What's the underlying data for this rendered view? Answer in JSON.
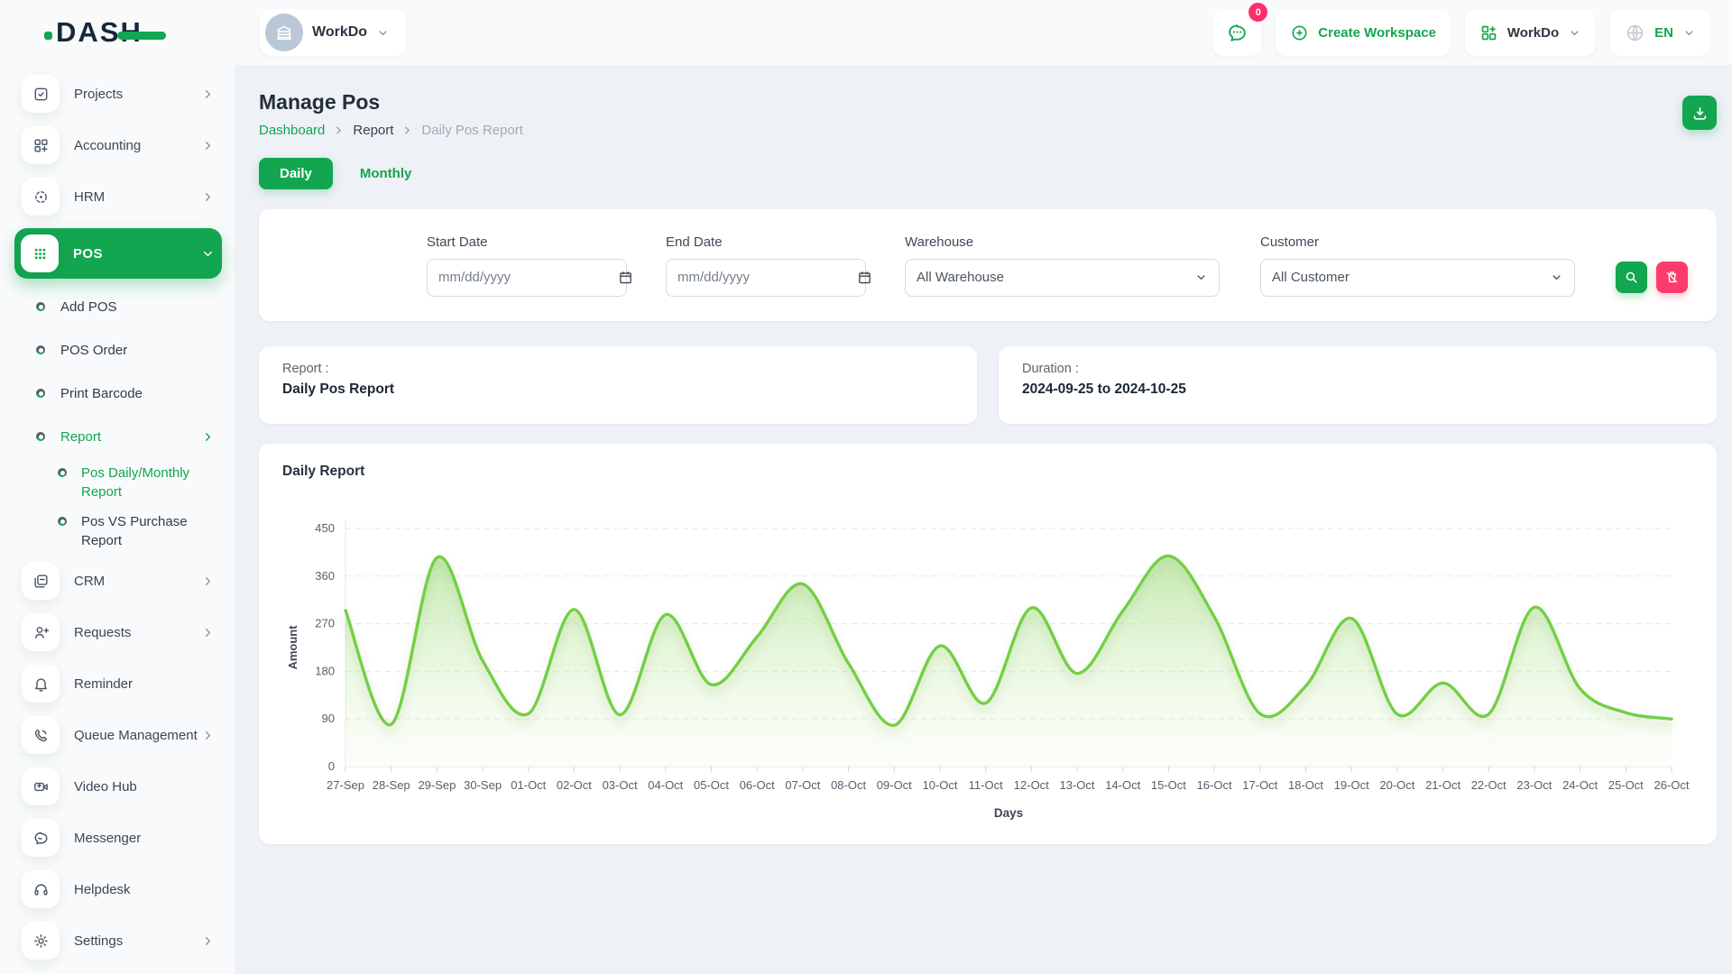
{
  "brand": {
    "name": "DASH"
  },
  "colors": {
    "primary": "#12A650",
    "pink": "#FD3C6E",
    "chart_line": "#73CF44",
    "badge_red": "#FF2D6C"
  },
  "header": {
    "workspace_label": "WorkDo",
    "messages_badge": "0",
    "create_workspace_label": "Create Workspace",
    "workdo_menu_label": "WorkDo",
    "language": "EN"
  },
  "sidebar": {
    "items": [
      {
        "label": "Projects",
        "icon": "projects",
        "level": 0,
        "chevron": "right"
      },
      {
        "label": "Accounting",
        "icon": "accounting",
        "level": 0,
        "chevron": "right"
      },
      {
        "label": "HRM",
        "icon": "hrm",
        "level": 0,
        "chevron": "right"
      },
      {
        "label": "POS",
        "icon": "pos",
        "level": 0,
        "chevron": "down",
        "active": true
      },
      {
        "label": "Add POS",
        "level": 1
      },
      {
        "label": "POS Order",
        "level": 1
      },
      {
        "label": "Print Barcode",
        "level": 1
      },
      {
        "label": "Report",
        "level": 1,
        "chevron": "right",
        "active": true
      },
      {
        "label": "Pos Daily/Monthly Report",
        "level": 2,
        "active": true
      },
      {
        "label": "Pos VS Purchase Report",
        "level": 2
      },
      {
        "label": "CRM",
        "icon": "crm",
        "level": 0,
        "chevron": "right"
      },
      {
        "label": "Requests",
        "icon": "requests",
        "level": 0,
        "chevron": "right"
      },
      {
        "label": "Reminder",
        "icon": "reminder",
        "level": 0
      },
      {
        "label": "Queue Management",
        "icon": "queue",
        "level": 0,
        "chevron": "right"
      },
      {
        "label": "Video Hub",
        "icon": "video",
        "level": 0
      },
      {
        "label": "Messenger",
        "icon": "messenger",
        "level": 0
      },
      {
        "label": "Helpdesk",
        "icon": "helpdesk",
        "level": 0
      },
      {
        "label": "Settings",
        "icon": "settings",
        "level": 0,
        "chevron": "right"
      }
    ]
  },
  "page": {
    "title": "Manage Pos",
    "breadcrumb": [
      "Dashboard",
      "Report",
      "Daily Pos Report"
    ],
    "tabs": [
      {
        "label": "Daily",
        "active": true
      },
      {
        "label": "Monthly",
        "active": false
      }
    ]
  },
  "filters": {
    "start_date": {
      "label": "Start Date",
      "value": "",
      "placeholder": "mm/dd/yyyy"
    },
    "end_date": {
      "label": "End Date",
      "value": "",
      "placeholder": "mm/dd/yyyy"
    },
    "warehouse": {
      "label": "Warehouse",
      "value": "All Warehouse"
    },
    "customer": {
      "label": "Customer",
      "value": "All Customer"
    }
  },
  "summary": {
    "report_label": "Report :",
    "report_value": "Daily Pos Report",
    "duration_label": "Duration :",
    "duration_value": "2024-09-25 to 2024-10-25"
  },
  "chart_data": {
    "type": "area",
    "title": "Daily Report",
    "xlabel": "Days",
    "ylabel": "Amount",
    "ylim": [
      0,
      450
    ],
    "yticks": [
      0,
      90,
      180,
      270,
      360,
      450
    ],
    "grid": true,
    "legend": "none",
    "line_color": "#73CF44",
    "categories": [
      "27-Sep",
      "28-Sep",
      "29-Sep",
      "30-Sep",
      "01-Oct",
      "02-Oct",
      "03-Oct",
      "04-Oct",
      "05-Oct",
      "06-Oct",
      "07-Oct",
      "08-Oct",
      "09-Oct",
      "10-Oct",
      "11-Oct",
      "12-Oct",
      "13-Oct",
      "14-Oct",
      "15-Oct",
      "16-Oct",
      "17-Oct",
      "18-Oct",
      "19-Oct",
      "20-Oct",
      "21-Oct",
      "22-Oct",
      "23-Oct",
      "24-Oct",
      "25-Oct",
      "26-Oct"
    ],
    "values": [
      295,
      80,
      395,
      200,
      100,
      297,
      98,
      287,
      155,
      245,
      345,
      195,
      78,
      228,
      120,
      300,
      176,
      294,
      398,
      283,
      100,
      152,
      280,
      99,
      158,
      99,
      301,
      147,
      102,
      90
    ]
  }
}
